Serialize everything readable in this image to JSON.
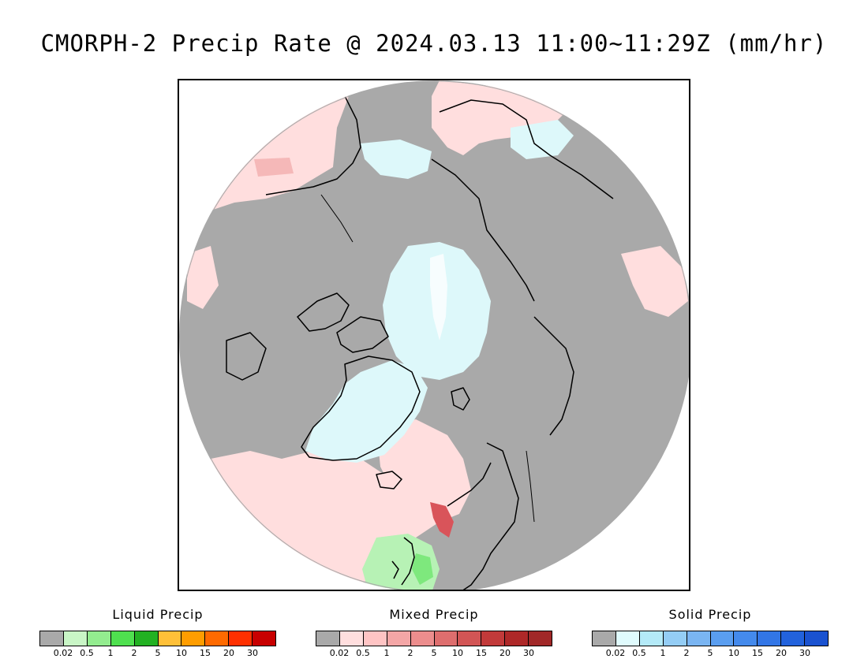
{
  "title": "CMORPH-2 Precip Rate @ 2024.03.13 11:00~11:29Z (mm/hr)",
  "map": {
    "projection": "north-polar-stereographic",
    "colors": {
      "land_no_precip": "#a9a9a9",
      "mixed_light": "#ffdede",
      "mixed_medium": "#f5b8b8",
      "mixed_heavy": "#d9545a",
      "solid_light": "#ddf8fa",
      "liquid_light": "#b7f2b5",
      "liquid_medium": "#7ee87d",
      "coastline": "#000000",
      "outside": "#ffffff"
    }
  },
  "legends": [
    {
      "title": "Liquid Precip",
      "colors": [
        "#a9a9a9",
        "#c9f6c6",
        "#93ec8f",
        "#4fe04f",
        "#22b122",
        "#ffc038",
        "#ff9d00",
        "#ff6a00",
        "#ff3000",
        "#c80000"
      ],
      "ticks": [
        "0.02",
        "0.5",
        "1",
        "2",
        "5",
        "10",
        "15",
        "20",
        "30"
      ]
    },
    {
      "title": "Mixed Precip",
      "colors": [
        "#a9a9a9",
        "#ffdede",
        "#ffc4c4",
        "#f4a6a6",
        "#ec8d8d",
        "#de6e6e",
        "#d25555",
        "#c23a3a",
        "#ae2828",
        "#a12828"
      ],
      "ticks": [
        "0.02",
        "0.5",
        "1",
        "2",
        "5",
        "10",
        "15",
        "20",
        "30"
      ]
    },
    {
      "title": "Solid Precip",
      "colors": [
        "#a9a9a9",
        "#e0fbfd",
        "#b4eaf8",
        "#94cdf5",
        "#7ab5f2",
        "#5a9ef0",
        "#448aec",
        "#3276e6",
        "#2262dc",
        "#1a52d0"
      ],
      "ticks": [
        "0.02",
        "0.5",
        "1",
        "2",
        "5",
        "10",
        "15",
        "20",
        "30"
      ]
    }
  ]
}
